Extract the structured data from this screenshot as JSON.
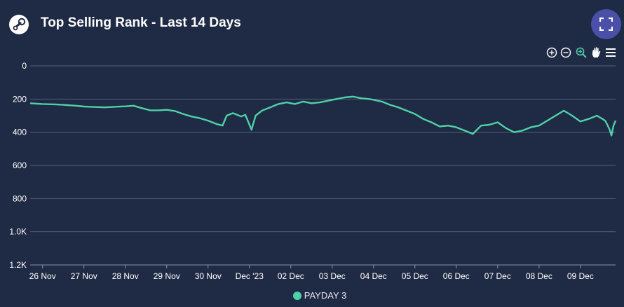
{
  "header": {
    "title": "Top Selling Rank - Last 14 Days",
    "logo_icon": "steam-logo-icon",
    "fullscreen_icon": "fullscreen-icon"
  },
  "toolbar": {
    "tools": [
      "zoom-in-icon",
      "zoom-out-icon",
      "magnify-zoom-icon",
      "pan-hand-icon",
      "menu-icon"
    ]
  },
  "colors": {
    "background": "#1f2a44",
    "series": "#4fd1a8",
    "grid": "#56607a",
    "accent_button": "#4a4fa8"
  },
  "chart_data": {
    "type": "line",
    "title": "Top Selling Rank - Last 14 Days",
    "xlabel": "",
    "ylabel": "",
    "y_reversed": true,
    "ylim": [
      0,
      1200
    ],
    "yticks": [
      {
        "value": 0,
        "label": "0"
      },
      {
        "value": 200,
        "label": "200"
      },
      {
        "value": 400,
        "label": "400"
      },
      {
        "value": 600,
        "label": "600"
      },
      {
        "value": 800,
        "label": "800"
      },
      {
        "value": 1000,
        "label": "1.0K"
      },
      {
        "value": 1200,
        "label": "1.2K"
      }
    ],
    "xlim": [
      -0.3,
      13.85
    ],
    "xticks": [
      {
        "value": 0,
        "label": "26 Nov"
      },
      {
        "value": 1,
        "label": "27 Nov"
      },
      {
        "value": 2,
        "label": "28 Nov"
      },
      {
        "value": 3,
        "label": "29 Nov"
      },
      {
        "value": 4,
        "label": "30 Nov"
      },
      {
        "value": 5,
        "label": "Dec '23"
      },
      {
        "value": 6,
        "label": "02 Dec"
      },
      {
        "value": 7,
        "label": "03 Dec"
      },
      {
        "value": 8,
        "label": "04 Dec"
      },
      {
        "value": 9,
        "label": "05 Dec"
      },
      {
        "value": 10,
        "label": "06 Dec"
      },
      {
        "value": 11,
        "label": "07 Dec"
      },
      {
        "value": 12,
        "label": "08 Dec"
      },
      {
        "value": 13,
        "label": "09 Dec"
      }
    ],
    "grid": "horizontal",
    "legend_position": "bottom-center",
    "series": [
      {
        "name": "PAYDAY 3",
        "color": "#4fd1a8",
        "points": [
          [
            -0.3,
            225
          ],
          [
            0.0,
            230
          ],
          [
            0.3,
            232
          ],
          [
            0.5,
            235
          ],
          [
            0.8,
            240
          ],
          [
            1.0,
            245
          ],
          [
            1.3,
            248
          ],
          [
            1.5,
            250
          ],
          [
            1.8,
            246
          ],
          [
            2.0,
            244
          ],
          [
            2.2,
            240
          ],
          [
            2.4,
            255
          ],
          [
            2.6,
            268
          ],
          [
            2.8,
            268
          ],
          [
            3.0,
            265
          ],
          [
            3.2,
            272
          ],
          [
            3.4,
            290
          ],
          [
            3.6,
            305
          ],
          [
            3.8,
            315
          ],
          [
            4.0,
            330
          ],
          [
            4.2,
            350
          ],
          [
            4.35,
            360
          ],
          [
            4.45,
            300
          ],
          [
            4.6,
            285
          ],
          [
            4.8,
            305
          ],
          [
            4.9,
            295
          ],
          [
            5.0,
            355
          ],
          [
            5.05,
            385
          ],
          [
            5.15,
            300
          ],
          [
            5.3,
            270
          ],
          [
            5.5,
            250
          ],
          [
            5.7,
            230
          ],
          [
            5.9,
            220
          ],
          [
            6.1,
            230
          ],
          [
            6.3,
            215
          ],
          [
            6.5,
            225
          ],
          [
            6.7,
            220
          ],
          [
            6.9,
            210
          ],
          [
            7.1,
            200
          ],
          [
            7.3,
            190
          ],
          [
            7.5,
            185
          ],
          [
            7.7,
            195
          ],
          [
            7.9,
            200
          ],
          [
            8.0,
            205
          ],
          [
            8.2,
            215
          ],
          [
            8.4,
            235
          ],
          [
            8.6,
            250
          ],
          [
            8.8,
            270
          ],
          [
            9.0,
            290
          ],
          [
            9.2,
            320
          ],
          [
            9.4,
            340
          ],
          [
            9.6,
            365
          ],
          [
            9.8,
            360
          ],
          [
            10.0,
            370
          ],
          [
            10.2,
            390
          ],
          [
            10.4,
            410
          ],
          [
            10.6,
            360
          ],
          [
            10.8,
            355
          ],
          [
            11.0,
            340
          ],
          [
            11.2,
            375
          ],
          [
            11.4,
            400
          ],
          [
            11.6,
            390
          ],
          [
            11.8,
            370
          ],
          [
            12.0,
            360
          ],
          [
            12.2,
            330
          ],
          [
            12.4,
            300
          ],
          [
            12.6,
            270
          ],
          [
            12.8,
            300
          ],
          [
            13.0,
            335
          ],
          [
            13.2,
            320
          ],
          [
            13.4,
            300
          ],
          [
            13.6,
            330
          ],
          [
            13.7,
            380
          ],
          [
            13.75,
            420
          ],
          [
            13.8,
            360
          ],
          [
            13.85,
            330
          ]
        ]
      }
    ]
  }
}
